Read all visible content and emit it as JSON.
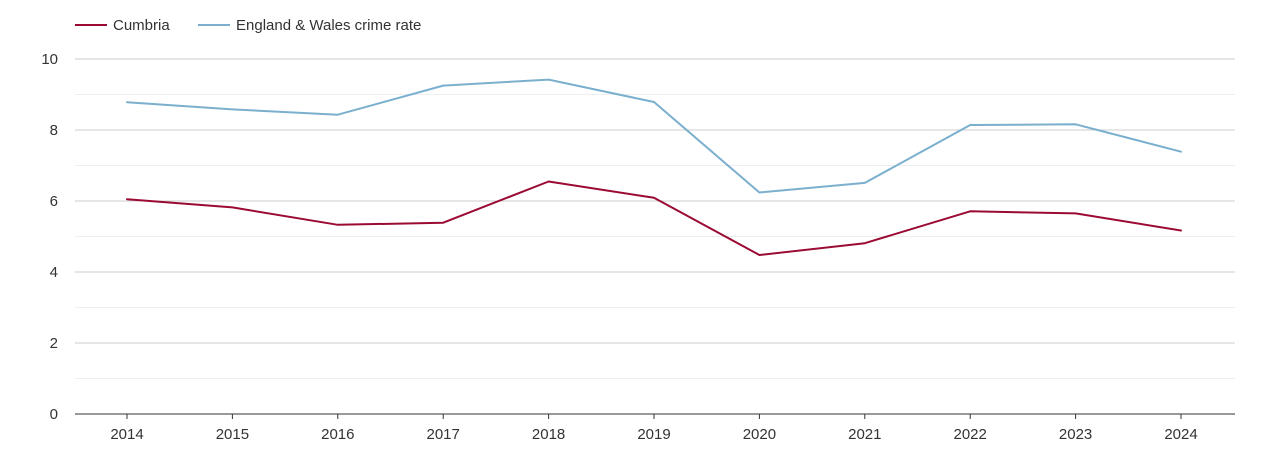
{
  "chart_data": {
    "type": "line",
    "title": "",
    "xlabel": "",
    "ylabel": "",
    "x": [
      "2014",
      "2015",
      "2016",
      "2017",
      "2018",
      "2019",
      "2020",
      "2021",
      "2022",
      "2023",
      "2024"
    ],
    "ylim": [
      0,
      10
    ],
    "yticks": [
      "0",
      "2",
      "4",
      "6",
      "8",
      "10"
    ],
    "grid": true,
    "legend_position": "top-left",
    "series": [
      {
        "name": "Cumbria",
        "color": "#9b0a33",
        "values": [
          6.05,
          5.82,
          5.33,
          5.39,
          6.55,
          6.09,
          4.48,
          4.81,
          5.71,
          5.65,
          5.17
        ]
      },
      {
        "name": "England & Wales crime rate",
        "color": "#7aafce",
        "values": [
          8.78,
          8.58,
          8.43,
          9.25,
          9.42,
          8.79,
          6.24,
          6.51,
          8.14,
          8.16,
          7.39
        ]
      }
    ]
  }
}
